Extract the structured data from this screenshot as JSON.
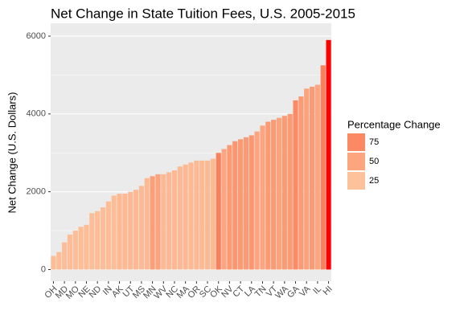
{
  "chart_data": {
    "type": "bar",
    "title": "Net Change in State Tuition Fees, U.S. 2005-2015",
    "y_label": "Net Change (U.S. Dollars)",
    "categories": [
      "OH",
      null,
      "MD",
      null,
      "MO",
      null,
      "NE",
      null,
      "ND",
      null,
      "IN",
      null,
      "AK",
      null,
      "UT",
      null,
      "MS",
      null,
      "MN",
      null,
      "WV",
      null,
      "NC",
      null,
      "MA",
      null,
      "OR",
      null,
      "SC",
      null,
      "OK",
      null,
      "NV",
      null,
      "CT",
      null,
      "LA",
      null,
      "TN",
      null,
      "VT",
      null,
      "WA",
      null,
      "GA",
      null,
      "VA",
      null,
      "IL",
      null,
      "HI"
    ],
    "values": [
      350,
      450,
      700,
      900,
      1000,
      1100,
      1150,
      1450,
      1500,
      1600,
      1750,
      1900,
      1950,
      1950,
      2000,
      2050,
      2150,
      2350,
      2400,
      2450,
      2450,
      2500,
      2550,
      2650,
      2700,
      2750,
      2800,
      2800,
      2800,
      2850,
      3000,
      3100,
      3200,
      3300,
      3350,
      3400,
      3450,
      3550,
      3700,
      3800,
      3850,
      3900,
      3950,
      4000,
      4350,
      4450,
      4650,
      4700,
      4750,
      5250,
      5900
    ],
    "colors": [
      "#fdbe97",
      "#fdbe97",
      "#fdbe97",
      "#fdbe97",
      "#fdbe97",
      "#fdbe97",
      "#fdbe97",
      "#fdbe97",
      "#fdbe97",
      "#fdbe97",
      "#fdbe97",
      "#fdbe97",
      "#fdb994",
      "#fdb994",
      "#fdb994",
      "#fdb994",
      "#fdb994",
      "#fdb994",
      "#fc9e78",
      "#fca27c",
      "#fdb994",
      "#fdb994",
      "#fdb994",
      "#fdb994",
      "#fdb994",
      "#fdb994",
      "#fdb994",
      "#fdb994",
      "#fdb994",
      "#fdb994",
      "#fb7f5a",
      "#fda580",
      "#fc9a74",
      "#fc9570",
      "#fc9a74",
      "#fc9a74",
      "#fc9570",
      "#fda580",
      "#fda580",
      "#fc9a74",
      "#fc9a74",
      "#fca27c",
      "#fc9a74",
      "#fc9a74",
      "#fb8a66",
      "#fc9a74",
      "#fca27c",
      "#fc9a74",
      "#fda580",
      "#fb7f5a",
      "#ff0000"
    ],
    "ylim": [
      -300,
      6330
    ],
    "yticks": [
      0,
      2000,
      4000,
      6000
    ],
    "grid": true,
    "legend": {
      "title": "Percentage Change",
      "entries": [
        {
          "label": 75,
          "color": "#fb8964"
        },
        {
          "label": 50,
          "color": "#fca57f"
        },
        {
          "label": 25,
          "color": "#fdc19c"
        }
      ]
    }
  }
}
